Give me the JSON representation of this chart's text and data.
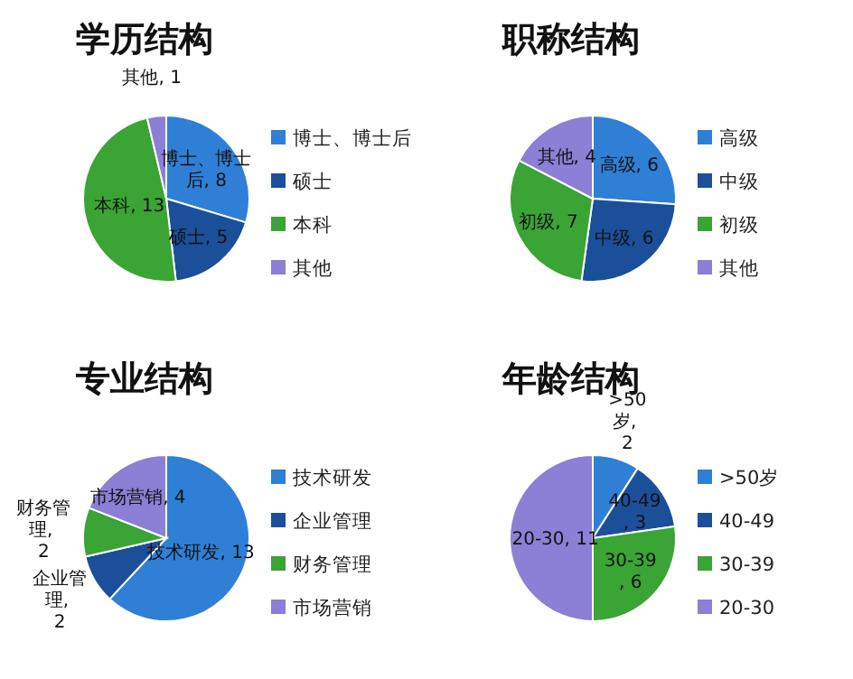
{
  "chart_data": [
    {
      "type": "pie",
      "title": "学历结构",
      "categories": [
        "博士、博士后",
        "硕士",
        "本科",
        "其他"
      ],
      "values": [
        8,
        5,
        13,
        1
      ],
      "value_labels": [
        "博士、博士后, 8",
        "硕士, 5",
        "本科, 13",
        "其他, 1"
      ],
      "colors": [
        "#2f7fd6",
        "#1c4f9a",
        "#3aa434",
        "#8b7fd6"
      ],
      "legend": "right"
    },
    {
      "type": "pie",
      "title": "职称结构",
      "categories": [
        "高级",
        "中级",
        "初级",
        "其他"
      ],
      "values": [
        6,
        6,
        7,
        4
      ],
      "value_labels": [
        "高级, 6",
        "中级, 6",
        "初级, 7",
        "其他, 4"
      ],
      "colors": [
        "#2f7fd6",
        "#1c4f9a",
        "#3aa434",
        "#8b7fd6"
      ],
      "legend": "right"
    },
    {
      "type": "pie",
      "title": "专业结构",
      "categories": [
        "技术研发",
        "企业管理",
        "财务管理",
        "市场营销"
      ],
      "values": [
        13,
        2,
        2,
        4
      ],
      "value_labels": [
        "技术研发, 13",
        "企业管理, 2",
        "财务管理, 2",
        "市场营销, 4"
      ],
      "colors": [
        "#2f7fd6",
        "#1c4f9a",
        "#3aa434",
        "#8b7fd6"
      ],
      "legend": "right"
    },
    {
      "type": "pie",
      "title": "年龄结构",
      "categories": [
        ">50岁",
        "40-49",
        "30-39",
        "20-30"
      ],
      "values": [
        2,
        3,
        6,
        11
      ],
      "value_labels": [
        ">50岁, 2",
        "40-49, 3",
        "30-39, 6",
        "20-30, 11"
      ],
      "colors": [
        "#2f7fd6",
        "#1c4f9a",
        "#3aa434",
        "#8b7fd6"
      ],
      "legend": "right"
    }
  ]
}
